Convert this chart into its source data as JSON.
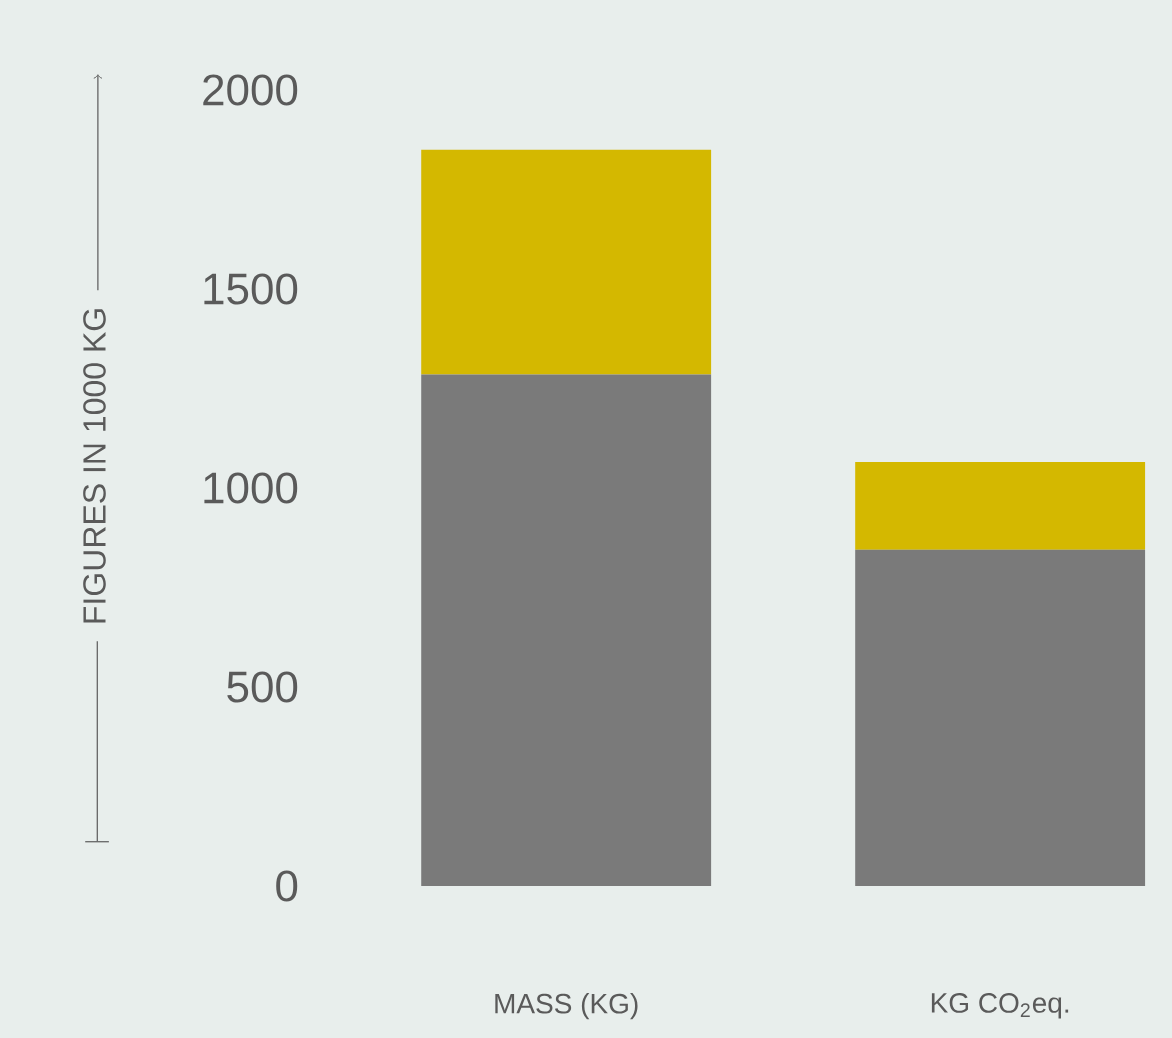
{
  "chart_data": {
    "type": "bar",
    "stacked": true,
    "categories": [
      "MASS (KG)",
      "KG CO$_{2}$eq."
    ],
    "ylabel": "FIGURES IN 1000 KG",
    "series": [
      {
        "color": "#7a7a7a",
        "values": [
          1285,
          845
        ]
      },
      {
        "color": "#d4b800",
        "values": [
          565,
          220
        ]
      }
    ],
    "ylim": [
      0,
      2000
    ],
    "yticks": [
      0,
      500,
      1000,
      1500,
      2000
    ]
  }
}
